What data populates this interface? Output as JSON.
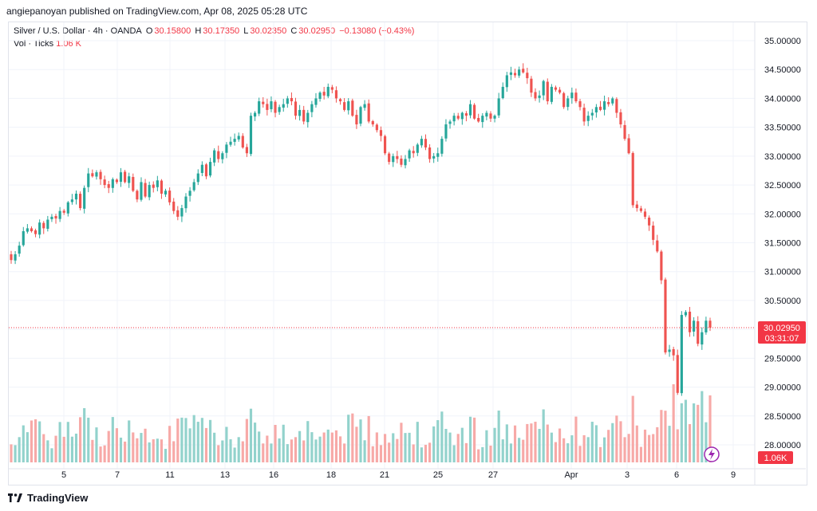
{
  "header": {
    "publisher": "angiepanoyan published on TradingView.com, Apr 08, 2025 05:28 UTC"
  },
  "legend": {
    "symbol": "Silver / U.S. Dollar · 4h · OANDA",
    "o_label": "O",
    "o": "30.15800",
    "h_label": "H",
    "h": "30.17350",
    "l_label": "L",
    "l": "30.02350",
    "c_label": "C",
    "c": "30.02950",
    "change": "−0.13080 (−0.43%)",
    "vol_label": "Vol · Ticks",
    "vol_value": "1.06 K"
  },
  "price_badge": {
    "price": "30.02950",
    "countdown": "03:31:07"
  },
  "volume_badge": "1.06K",
  "footer": {
    "logo": "TradingView"
  },
  "colors": {
    "up": "#26a69a",
    "down": "#ef5350",
    "vol_up": "#92d2cc",
    "vol_down": "#f7a9a7",
    "badge": "#f23645"
  },
  "chart_data": {
    "type": "candlestick",
    "title": "Silver / U.S. Dollar · 4h · OANDA",
    "ylim": [
      27.8,
      35.3
    ],
    "y_ticks": [
      "35.00000",
      "34.50000",
      "34.00000",
      "33.50000",
      "33.00000",
      "32.50000",
      "32.00000",
      "31.50000",
      "31.00000",
      "30.50000",
      "30.00000",
      "29.50000",
      "29.00000",
      "28.50000",
      "28.00000"
    ],
    "x_ticks": [
      "5",
      "7",
      "11",
      "13",
      "16",
      "18",
      "21",
      "25",
      "27",
      "Apr",
      "3",
      "6",
      "9"
    ],
    "last_price": 30.0295,
    "closes": [
      31.2,
      31.3,
      31.45,
      31.7,
      31.75,
      31.7,
      31.65,
      31.85,
      31.75,
      31.9,
      31.95,
      31.92,
      32.05,
      32.02,
      32.2,
      32.25,
      32.35,
      32.1,
      32.45,
      32.7,
      32.65,
      32.72,
      32.6,
      32.5,
      32.45,
      32.6,
      32.55,
      32.72,
      32.55,
      32.65,
      32.4,
      32.25,
      32.55,
      32.3,
      32.5,
      32.45,
      32.58,
      32.35,
      32.4,
      32.2,
      32.05,
      31.95,
      32.1,
      32.3,
      32.4,
      32.55,
      32.7,
      32.85,
      32.65,
      32.9,
      33.1,
      32.95,
      33.05,
      33.2,
      33.25,
      33.3,
      33.35,
      33.15,
      33.05,
      33.7,
      33.75,
      33.95,
      33.9,
      33.8,
      33.95,
      33.75,
      33.85,
      33.9,
      34.0,
      33.95,
      33.7,
      33.8,
      33.6,
      33.75,
      33.9,
      34.0,
      34.1,
      34.05,
      34.2,
      34.15,
      34.0,
      33.95,
      33.8,
      33.95,
      33.7,
      33.55,
      33.85,
      33.9,
      33.6,
      33.55,
      33.45,
      33.35,
      33.05,
      32.9,
      33.0,
      32.95,
      32.85,
      32.95,
      33.1,
      33.05,
      33.2,
      33.3,
      33.15,
      32.95,
      33.0,
      33.05,
      33.3,
      33.55,
      33.6,
      33.7,
      33.65,
      33.75,
      33.7,
      33.9,
      33.65,
      33.6,
      33.7,
      33.75,
      33.65,
      33.7,
      34.0,
      34.2,
      34.4,
      34.45,
      34.4,
      34.5,
      34.45,
      34.35,
      34.1,
      34.0,
      34.05,
      34.3,
      33.95,
      34.2,
      34.15,
      34.1,
      33.85,
      34.0,
      34.1,
      33.95,
      33.85,
      33.6,
      33.7,
      33.75,
      33.85,
      33.8,
      33.95,
      33.9,
      34.0,
      33.75,
      33.55,
      33.3,
      33.05,
      32.15,
      32.1,
      32.05,
      31.95,
      31.8,
      31.55,
      31.35,
      30.85,
      29.6,
      29.65,
      29.55,
      28.9,
      30.25,
      30.3,
      29.95,
      30.15,
      29.75,
      29.95,
      30.15,
      30.03
    ]
  }
}
